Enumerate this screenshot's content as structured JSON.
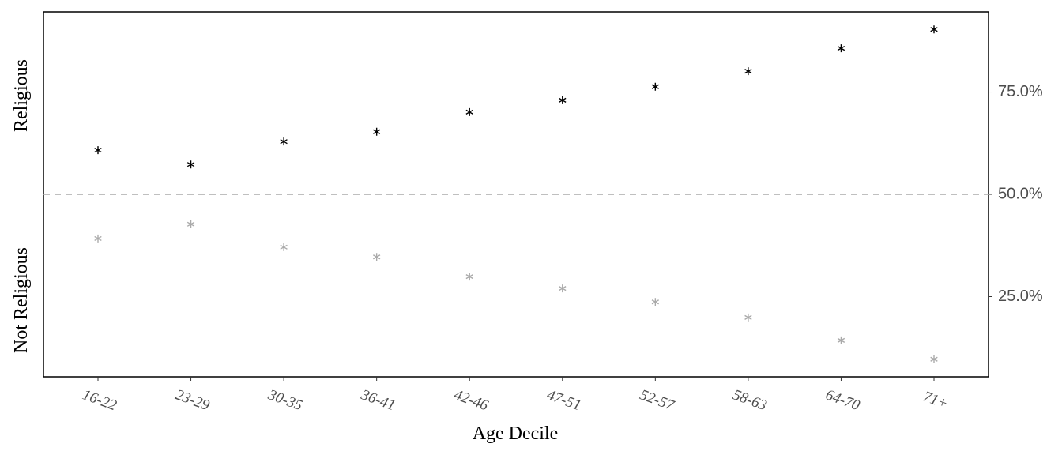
{
  "chart_data": {
    "type": "scatter",
    "x_label": "Age Decile",
    "categories": [
      "16-22",
      "23-29",
      "30-35",
      "36-41",
      "42-46",
      "47-51",
      "52-57",
      "58-63",
      "64-70",
      "71+"
    ],
    "series": [
      {
        "name": "Religious",
        "color": "#000000",
        "values": [
          60.8,
          57.3,
          62.9,
          65.3,
          70.1,
          73.0,
          76.3,
          80.1,
          85.7,
          90.3
        ]
      },
      {
        "name": "Not Religious",
        "color": "#aaaaaa",
        "values": [
          39.2,
          42.7,
          37.1,
          34.7,
          29.9,
          27.0,
          23.7,
          19.9,
          14.3,
          9.7
        ]
      }
    ],
    "ylim": [
      5.4,
      94.6
    ],
    "yticks": [
      {
        "value": 25,
        "label": "25.0%"
      },
      {
        "value": 50,
        "label": "50.0%"
      },
      {
        "value": 75,
        "label": "75.0%"
      }
    ],
    "reference_line": 50,
    "grid": false
  }
}
